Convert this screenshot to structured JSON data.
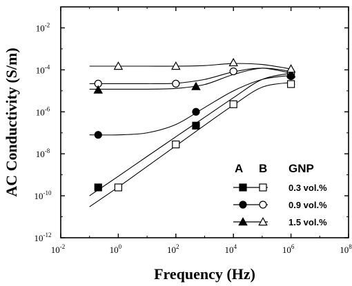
{
  "chart_data": {
    "type": "line",
    "xlabel": "Frequency (Hz)",
    "ylabel": "AC Conductivity (S/m)",
    "x_scale": "log",
    "y_scale": "log",
    "xlim": [
      0.01,
      100000000
    ],
    "ylim": [
      1e-12,
      0.1
    ],
    "x_ticks": [
      {
        "value": 0.01,
        "base": "10",
        "exp": "-2"
      },
      {
        "value": 1,
        "base": "10",
        "exp": "0"
      },
      {
        "value": 100,
        "base": "10",
        "exp": "2"
      },
      {
        "value": 10000,
        "base": "10",
        "exp": "4"
      },
      {
        "value": 1000000,
        "base": "10",
        "exp": "6"
      },
      {
        "value": 100000000,
        "base": "10",
        "exp": "8"
      }
    ],
    "y_ticks": [
      {
        "value": 0.01,
        "base": "10",
        "exp": "-2"
      },
      {
        "value": 0.0001,
        "base": "10",
        "exp": "-4"
      },
      {
        "value": 1e-06,
        "base": "10",
        "exp": "-6"
      },
      {
        "value": 1e-08,
        "base": "10",
        "exp": "-8"
      },
      {
        "value": 1e-10,
        "base": "10",
        "exp": "-10"
      },
      {
        "value": 1e-12,
        "base": "10",
        "exp": "-12"
      }
    ],
    "legend": {
      "position": "lower-right",
      "header_a": "A",
      "header_b": "B",
      "header_gnp": "GNP"
    },
    "series": [
      {
        "label": "0.3 vol.%",
        "col": "A",
        "marker": "square",
        "filled": true,
        "x": [
          0.2,
          500,
          1000000
        ],
        "y": [
          2.5e-10,
          2.2e-07,
          6e-05
        ],
        "fit": {
          "x": [
            0.1,
            1,
            10,
            100,
            1000,
            10000,
            100000,
            1000000
          ],
          "y": [
            1e-10,
            8.5e-10,
            7.5e-09,
            6.5e-08,
            5.5e-07,
            4.7e-06,
            3.5e-05,
            7e-05
          ]
        }
      },
      {
        "label": "0.3 vol.%",
        "col": "B",
        "marker": "square",
        "filled": false,
        "x": [
          1,
          100,
          10000,
          1000000
        ],
        "y": [
          2.5e-10,
          2.8e-08,
          2.3e-06,
          2.1e-05
        ],
        "fit": {
          "x": [
            0.1,
            1,
            10,
            100,
            1000,
            10000,
            100000,
            1000000
          ],
          "y": [
            3e-11,
            2.6e-10,
            2.5e-09,
            2.4e-08,
            2.3e-07,
            2.1e-06,
            1.5e-05,
            2.5e-05
          ]
        }
      },
      {
        "label": "0.9 vol.%",
        "col": "A",
        "marker": "circle",
        "filled": true,
        "x": [
          0.2,
          500,
          1000000
        ],
        "y": [
          8e-08,
          1e-06,
          5e-05
        ],
        "fit": {
          "x": [
            0.1,
            1,
            10,
            100,
            1000,
            10000,
            100000,
            1000000
          ],
          "y": [
            8e-08,
            8e-08,
            1e-07,
            2.5e-07,
            1.6e-06,
            1e-05,
            3.5e-05,
            5.5e-05
          ]
        }
      },
      {
        "label": "0.9 vol.%",
        "col": "B",
        "marker": "circle",
        "filled": false,
        "x": [
          0.2,
          100,
          10000,
          1000000
        ],
        "y": [
          2.2e-05,
          2.2e-05,
          8.5e-05,
          7.5e-05
        ],
        "fit": {
          "x": [
            0.1,
            1,
            10,
            100,
            1000,
            10000,
            100000,
            1000000
          ],
          "y": [
            2.2e-05,
            2.2e-05,
            2.2e-05,
            2.3e-05,
            3.5e-05,
            8e-05,
            0.00012,
            7e-05
          ]
        }
      },
      {
        "label": "1.5 vol.%",
        "col": "A",
        "marker": "triangle",
        "filled": true,
        "x": [
          0.2,
          500,
          1000000
        ],
        "y": [
          1.1e-05,
          1.6e-05,
          6.5e-05
        ],
        "fit": {
          "x": [
            0.1,
            1,
            10,
            100,
            1000,
            10000,
            100000,
            1000000
          ],
          "y": [
            1.2e-05,
            1.2e-05,
            1.2e-05,
            1.3e-05,
            2e-05,
            6e-05,
            0.00012,
            8.5e-05
          ]
        }
      },
      {
        "label": "1.5 vol.%",
        "col": "B",
        "marker": "triangle",
        "filled": false,
        "x": [
          1,
          100,
          10000,
          1000000
        ],
        "y": [
          0.00015,
          0.00015,
          0.00022,
          0.00011
        ],
        "fit": {
          "x": [
            0.1,
            1,
            10,
            100,
            1000,
            10000,
            100000,
            1000000
          ],
          "y": [
            0.00015,
            0.00015,
            0.00015,
            0.00015,
            0.00016,
            0.0002,
            0.00018,
            0.00011
          ]
        }
      }
    ]
  }
}
